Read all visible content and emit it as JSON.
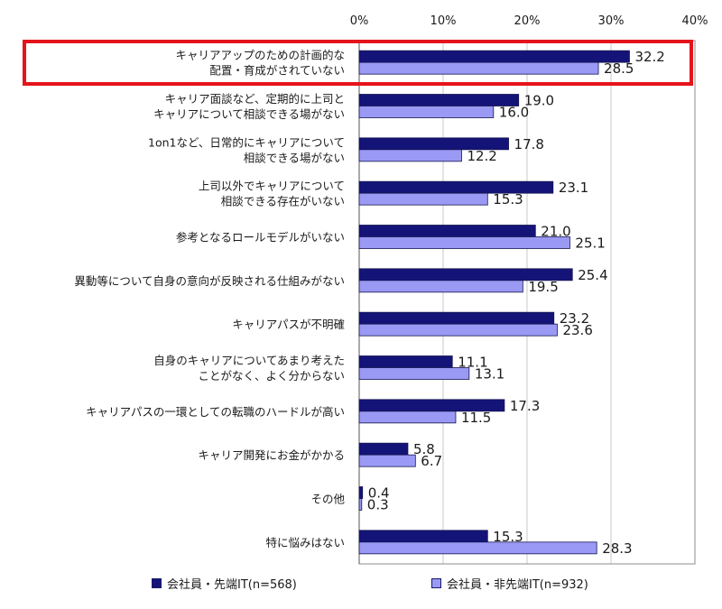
{
  "chart_data": {
    "type": "bar",
    "orientation": "horizontal",
    "xlim": [
      0,
      40
    ],
    "x_ticks": [
      "0%",
      "10%",
      "20%",
      "30%",
      "40%"
    ],
    "categories": [
      [
        "キャリアアップのための計画的な",
        "配置・育成がされていない"
      ],
      [
        "キャリア面談など、定期的に上司と",
        "キャリアについて相談できる場がない"
      ],
      [
        "1on1など、日常的にキャリアについて",
        "相談できる場がない"
      ],
      [
        "上司以外でキャリアについて",
        "相談できる存在がいない"
      ],
      [
        "参考となるロールモデルがいない"
      ],
      [
        "異動等について自身の意向が反映される仕組みがない"
      ],
      [
        "キャリアパスが不明確"
      ],
      [
        "自身のキャリアについてあまり考えた",
        "ことがなく、よく分からない"
      ],
      [
        "キャリアパスの一環としての転職のハードルが高い"
      ],
      [
        "キャリア開発にお金がかかる"
      ],
      [
        "その他"
      ],
      [
        "特に悩みはない"
      ]
    ],
    "series": [
      {
        "name": "会社員・先端IT(n=568)",
        "color": "#141478",
        "values": [
          32.2,
          19.0,
          17.8,
          23.1,
          21.0,
          25.4,
          23.2,
          11.1,
          17.3,
          5.8,
          0.4,
          15.3
        ],
        "labels": [
          "32.2",
          "19.0",
          "17.8",
          "23.1",
          "21.0",
          "25.4",
          "23.2",
          "11.1",
          "17.3",
          "5.8",
          "0.4",
          "15.3"
        ]
      },
      {
        "name": "会社員・非先端IT(n=932)",
        "color": "#9a9af5",
        "values": [
          28.5,
          16.0,
          12.2,
          15.3,
          25.1,
          19.5,
          23.6,
          13.1,
          11.5,
          6.7,
          0.3,
          28.3
        ],
        "labels": [
          "28.5",
          "16.0",
          "12.2",
          "15.3",
          "25.1",
          "19.5",
          "23.6",
          "13.1",
          "11.5",
          "6.7",
          "0.3",
          "28.3"
        ]
      }
    ],
    "highlighted_category_index": 0,
    "highlight_color": "#e4141b"
  }
}
